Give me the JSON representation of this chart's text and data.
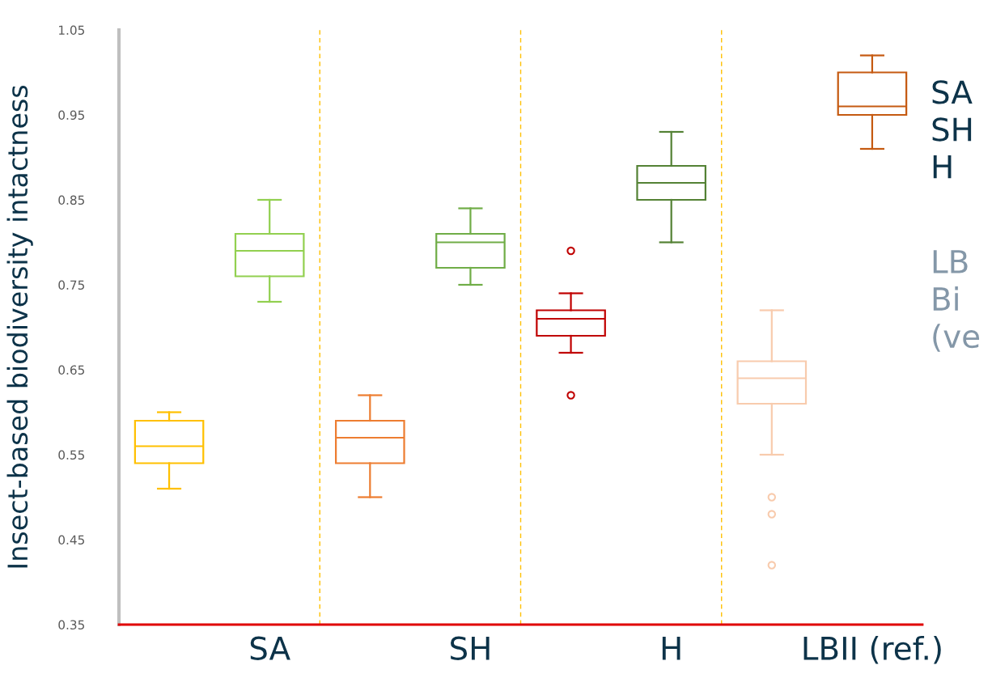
{
  "chart_data": {
    "type": "box",
    "ylabel": "Insect-based biodiversity intactness",
    "categories": [
      null,
      "SA",
      null,
      "SH",
      null,
      "H",
      null,
      "LBII (ref.)"
    ],
    "series": [
      {
        "colors": [
          "#ffc000",
          "#92d050",
          "#ed7d31",
          "#70ad47",
          "#c00000",
          "#548235",
          "#f8cbad",
          "#c55a11"
        ],
        "boxes": [
          {
            "low": 0.51,
            "q1": 0.54,
            "median": 0.56,
            "q3": 0.59,
            "high": 0.6
          },
          {
            "low": 0.73,
            "q1": 0.76,
            "median": 0.79,
            "q3": 0.81,
            "high": 0.85
          },
          {
            "low": 0.5,
            "q1": 0.54,
            "median": 0.57,
            "q3": 0.59,
            "high": 0.62
          },
          {
            "low": 0.75,
            "q1": 0.77,
            "median": 0.8,
            "q3": 0.81,
            "high": 0.84
          },
          {
            "low": 0.67,
            "q1": 0.69,
            "median": 0.71,
            "q3": 0.72,
            "high": 0.74,
            "outliers": [
              0.79,
              0.62
            ]
          },
          {
            "low": 0.8,
            "q1": 0.85,
            "median": 0.87,
            "q3": 0.89,
            "high": 0.93
          },
          {
            "low": 0.55,
            "q1": 0.61,
            "median": 0.64,
            "q3": 0.66,
            "high": 0.72,
            "outliers": [
              0.5,
              0.48,
              0.42
            ]
          },
          {
            "low": 0.91,
            "q1": 0.95,
            "median": 0.96,
            "q3": 1.0,
            "high": 1.02
          }
        ]
      }
    ],
    "ylim": [
      0.35,
      1.05
    ],
    "yticks": [
      0.35,
      0.45,
      0.55,
      0.65,
      0.75,
      0.85,
      0.95,
      1.05
    ],
    "annotations": [
      "SA",
      "SH",
      "H",
      "LB",
      "Bi",
      "(ve"
    ],
    "grid": false,
    "legend": false
  }
}
